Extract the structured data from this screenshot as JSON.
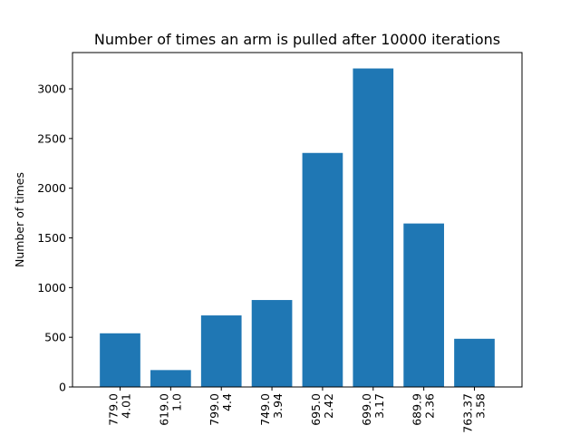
{
  "chart_data": {
    "type": "bar",
    "title": "Number of times an arm is pulled after 10000 iterations",
    "xlabel": "",
    "ylabel": "Number of times",
    "categories": [
      [
        "779.0",
        "4.01"
      ],
      [
        "619.0",
        "1.0"
      ],
      [
        "799.0",
        "4.4"
      ],
      [
        "749.0",
        "3.94"
      ],
      [
        "695.0",
        "2.42"
      ],
      [
        "699.0",
        "3.17"
      ],
      [
        "689.9",
        "2.36"
      ],
      [
        "763.37",
        "3.58"
      ]
    ],
    "values": [
      540,
      170,
      720,
      875,
      2355,
      3205,
      1645,
      485
    ],
    "ylim": [
      0,
      3365
    ],
    "yticks": [
      0,
      500,
      1000,
      1500,
      2000,
      2500,
      3000
    ],
    "grid": false,
    "bar_color": "#1f77b4"
  }
}
